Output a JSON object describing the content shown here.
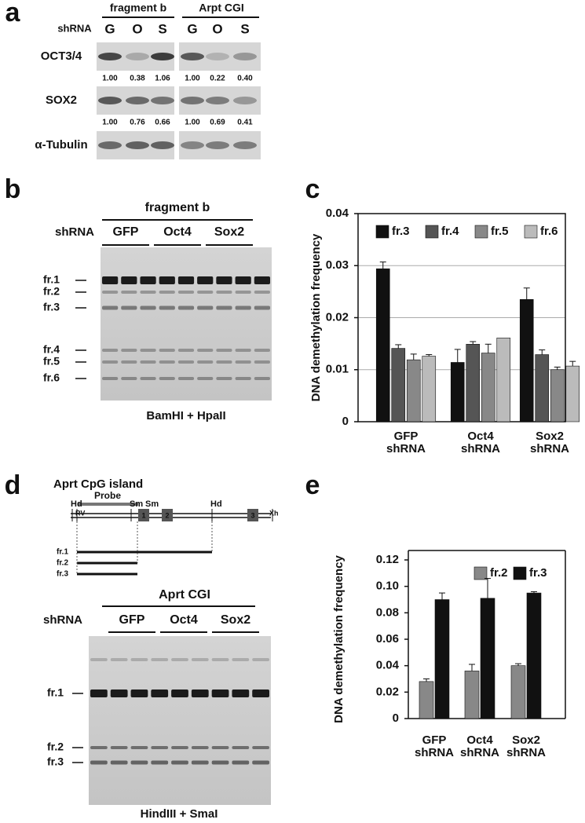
{
  "panel_a": {
    "label": "a",
    "headers": [
      "fragment b",
      "Arpt CGI"
    ],
    "shrna_label": "shRNA",
    "lanes": [
      "G",
      "O",
      "S",
      "G",
      "O",
      "S"
    ],
    "rows": [
      {
        "name": "OCT3/4",
        "quant": [
          "1.00",
          "0.38",
          "1.06",
          "1.00",
          "0.22",
          "0.40"
        ]
      },
      {
        "name": "SOX2",
        "quant": [
          "1.00",
          "0.76",
          "0.66",
          "1.00",
          "0.69",
          "0.41"
        ]
      },
      {
        "name": "α-Tubulin"
      }
    ]
  },
  "panel_b": {
    "label": "b",
    "header": "fragment b",
    "shrna_label": "shRNA",
    "groups": [
      "GFP",
      "Oct4",
      "Sox2"
    ],
    "bands": [
      "fr.1",
      "fr.2",
      "fr.3",
      "fr.4",
      "fr.5",
      "fr.6"
    ],
    "footer": "BamHI + HpaII"
  },
  "panel_c": {
    "label": "c"
  },
  "panel_d": {
    "label": "d",
    "map_title": "Aprt CpG island",
    "probe": "Probe",
    "sites": [
      "Hd",
      "RV",
      "Sm",
      "Sm",
      "Hd",
      "Xh"
    ],
    "exons": [
      "1",
      "2",
      "3"
    ],
    "fragments": [
      "fr.1",
      "fr.2",
      "fr.3"
    ],
    "header": "Aprt CGI",
    "shrna_label": "shRNA",
    "groups": [
      "GFP",
      "Oct4",
      "Sox2"
    ],
    "bands": [
      "fr.1",
      "fr.2",
      "fr.3"
    ],
    "footer": "HindIII + SmaI"
  },
  "panel_e": {
    "label": "e"
  },
  "chart_data": [
    {
      "type": "bar",
      "ylabel": "DNA demethylation frequency",
      "categories": [
        "GFP shRNA",
        "Oct4 shRNA",
        "Sox2 shRNA"
      ],
      "ylim": [
        0,
        0.04
      ],
      "yticks": [
        0,
        0.01,
        0.02,
        0.03,
        0.04
      ],
      "grid": true,
      "legend": "top",
      "series": [
        {
          "name": "fr.3",
          "color": "#111111",
          "values": [
            0.0294,
            0.0114,
            0.0235
          ],
          "errors": [
            0.0013,
            0.0025,
            0.0022
          ]
        },
        {
          "name": "fr.4",
          "color": "#555555",
          "values": [
            0.0141,
            0.0149,
            0.0129
          ],
          "errors": [
            0.0007,
            0.0005,
            0.0009
          ]
        },
        {
          "name": "fr.5",
          "color": "#888888",
          "values": [
            0.0119,
            0.0132,
            0.01
          ],
          "errors": [
            0.0011,
            0.0017,
            0.0005
          ]
        },
        {
          "name": "fr.6",
          "color": "#bbbbbb",
          "values": [
            0.0126,
            0.0161,
            0.0107
          ],
          "errors": [
            0.0003,
            null,
            0.0009
          ]
        }
      ]
    },
    {
      "type": "bar",
      "ylabel": "DNA demethylation frequency",
      "categories": [
        "GFP shRNA",
        "Oct4 shRNA",
        "Sox2 shRNA"
      ],
      "ylim": [
        0,
        0.12
      ],
      "yticks": [
        0,
        0.02,
        0.04,
        0.06,
        0.08,
        {
          "value": 0.1,
          "label": "0.10"
        },
        0.12
      ],
      "grid": false,
      "legend": "top-right",
      "series": [
        {
          "name": "fr.2",
          "color": "#888888",
          "values": [
            0.028,
            0.036,
            0.04
          ],
          "errors": [
            0.002,
            0.005,
            0.0015
          ]
        },
        {
          "name": "fr.3",
          "color": "#111111",
          "values": [
            0.09,
            0.091,
            0.095
          ],
          "errors": [
            0.005,
            0.015,
            0.001
          ]
        }
      ]
    }
  ]
}
